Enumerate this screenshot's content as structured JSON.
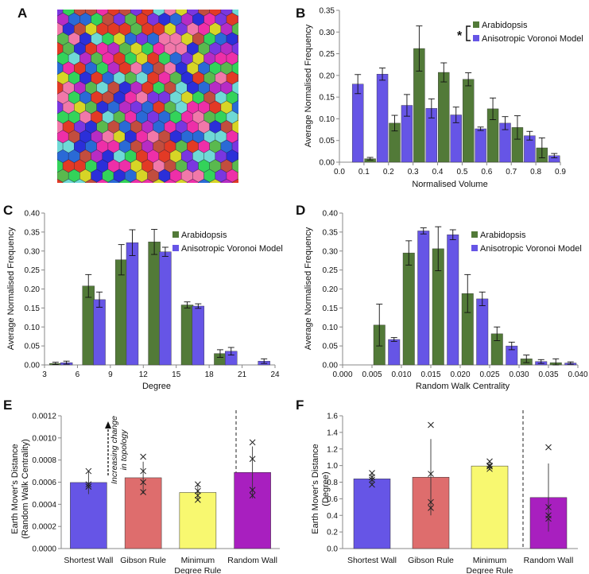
{
  "colors": {
    "green": "#527a38",
    "blue": "#6655e6",
    "red": "#de6d6d",
    "yellow": "#f8f870",
    "purple": "#a81fbf",
    "axis": "#888888",
    "text": "#111111"
  },
  "panel_a": {
    "letter": "A",
    "description": "3D tessellation of coloured polyhedral cells",
    "cell_colors": [
      "#33d35a",
      "#ee2fa8",
      "#7a36e0",
      "#d7d526",
      "#2a6ad6",
      "#e23a25",
      "#6fd9d6",
      "#2b2fd9",
      "#f178a9",
      "#b72cc4",
      "#5ab94e",
      "#c24d3e"
    ]
  },
  "chart_data": [
    {
      "id": "B",
      "letter": "B",
      "type": "bar",
      "title": "",
      "xlabel": "Normalised Volume",
      "ylabel": "Average Normalised Frequency",
      "xlim": [
        0,
        0.9
      ],
      "ylim": [
        0,
        0.35
      ],
      "xticks": [
        "0.0",
        "0.1",
        "0.2",
        "0.3",
        "0.4",
        "0.5",
        "0.6",
        "0.7",
        "0.8",
        "0.9"
      ],
      "yticks": [
        "0.00",
        "0.05",
        "0.10",
        "0.15",
        "0.20",
        "0.25",
        "0.30",
        "0.35"
      ],
      "legend": [
        "Arabidopsis",
        "Anisotropic Voronoi Model"
      ],
      "legend_position": "top-right",
      "significance": "*",
      "series": [
        {
          "name": "Arabidopsis",
          "color": "green",
          "x": [
            0.125,
            0.225,
            0.325,
            0.425,
            0.525,
            0.625,
            0.725,
            0.825
          ],
          "values": [
            0.008,
            0.09,
            0.262,
            0.207,
            0.191,
            0.123,
            0.08,
            0.033
          ],
          "errors": [
            0.003,
            0.018,
            0.052,
            0.022,
            0.015,
            0.025,
            0.027,
            0.023
          ]
        },
        {
          "name": "Anisotropic Voronoi Model",
          "color": "blue",
          "x": [
            0.075,
            0.175,
            0.275,
            0.375,
            0.475,
            0.575,
            0.675,
            0.775,
            0.875
          ],
          "values": [
            0.18,
            0.203,
            0.131,
            0.124,
            0.109,
            0.077,
            0.09,
            0.061,
            0.015
          ],
          "errors": [
            0.022,
            0.014,
            0.025,
            0.022,
            0.018,
            0.004,
            0.015,
            0.01,
            0.005
          ]
        }
      ]
    },
    {
      "id": "C",
      "letter": "C",
      "type": "bar",
      "title": "",
      "xlabel": "Degree",
      "ylabel": "Average Normalised Frequency",
      "xlim": [
        3,
        24
      ],
      "ylim": [
        0,
        0.4
      ],
      "xticks": [
        "3",
        "6",
        "9",
        "12",
        "15",
        "18",
        "21",
        "24"
      ],
      "yticks": [
        "0.00",
        "0.05",
        "0.10",
        "0.15",
        "0.20",
        "0.25",
        "0.30",
        "0.35",
        "0.40"
      ],
      "legend": [
        "Arabidopsis",
        "Anisotropic Voronoi Model"
      ],
      "legend_position": "top-right",
      "series": [
        {
          "name": "Arabidopsis",
          "color": "green",
          "x": [
            4.0,
            7.0,
            10.0,
            13.0,
            16.0,
            19.0
          ],
          "values": [
            0.004,
            0.208,
            0.277,
            0.324,
            0.158,
            0.03
          ],
          "errors": [
            0.003,
            0.03,
            0.04,
            0.033,
            0.008,
            0.01
          ]
        },
        {
          "name": "Anisotropic Voronoi Model",
          "color": "blue",
          "x": [
            5.0,
            8.0,
            11.0,
            14.0,
            17.0,
            20.0,
            23.0
          ],
          "values": [
            0.006,
            0.172,
            0.322,
            0.298,
            0.155,
            0.036,
            0.01
          ],
          "errors": [
            0.004,
            0.02,
            0.034,
            0.012,
            0.006,
            0.01,
            0.006
          ]
        }
      ]
    },
    {
      "id": "D",
      "letter": "D",
      "type": "bar",
      "title": "",
      "xlabel": "Random Walk Centrality",
      "ylabel": "Average Normalised Frequency",
      "xlim": [
        0,
        0.04
      ],
      "ylim": [
        0,
        0.4
      ],
      "xticks": [
        "0.000",
        "0.005",
        "0.010",
        "0.015",
        "0.020",
        "0.025",
        "0.030",
        "0.035",
        "0.040"
      ],
      "yticks": [
        "0.00",
        "0.05",
        "0.10",
        "0.15",
        "0.20",
        "0.25",
        "0.30",
        "0.35",
        "0.40"
      ],
      "legend": [
        "Arabidopsis",
        "Anisotropic Voronoi Model"
      ],
      "legend_position": "top-right",
      "series": [
        {
          "name": "Arabidopsis",
          "color": "green",
          "x": [
            0.00625,
            0.01125,
            0.01625,
            0.02125,
            0.02625,
            0.03125,
            0.03625
          ],
          "values": [
            0.105,
            0.295,
            0.306,
            0.188,
            0.082,
            0.016,
            0.006
          ],
          "errors": [
            0.055,
            0.032,
            0.058,
            0.05,
            0.018,
            0.01,
            0.01
          ]
        },
        {
          "name": "Anisotropic Voronoi Model",
          "color": "blue",
          "x": [
            0.00875,
            0.01375,
            0.01875,
            0.02375,
            0.02875,
            0.03375,
            0.03875
          ],
          "values": [
            0.067,
            0.353,
            0.343,
            0.174,
            0.05,
            0.009,
            0.005
          ],
          "errors": [
            0.005,
            0.008,
            0.013,
            0.018,
            0.01,
            0.005,
            0.003
          ]
        }
      ]
    },
    {
      "id": "E",
      "letter": "E",
      "type": "bar",
      "title": "",
      "xlabel": "",
      "ylabel": "Earth Mover's Distance\n(Random Walk Centrality)",
      "ylim": [
        0,
        0.0012
      ],
      "yticks": [
        "0.0000",
        "0.0002",
        "0.0004",
        "0.0006",
        "0.0008",
        "0.0010",
        "0.0012"
      ],
      "categories": [
        "Shortest Wall",
        "Gibson Rule",
        "Minimum\nDegree Rule",
        "Random Wall"
      ],
      "colors": [
        "blue",
        "red",
        "yellow",
        "purple"
      ],
      "values": [
        0.000597,
        0.00064,
        0.000507,
        0.000688
      ],
      "errors": [
        0.000105,
        0.000145,
        7.5e-05,
        0.000235
      ],
      "points": [
        [
          0.0007,
          0.00058,
          0.00056,
          0.00056
        ],
        [
          0.00083,
          0.0007,
          0.0006,
          0.00051
        ],
        [
          0.00058,
          0.00052,
          0.00048,
          0.00044
        ],
        [
          0.00096,
          0.00081,
          0.00053,
          0.00048
        ]
      ],
      "annotation": "Increasing change\nin topology"
    },
    {
      "id": "F",
      "letter": "F",
      "type": "bar",
      "title": "",
      "xlabel": "",
      "ylabel": "Earth Mover's Distance\n(Degree)",
      "ylim": [
        0,
        1.6
      ],
      "yticks": [
        "0.0",
        "0.2",
        "0.4",
        "0.6",
        "0.8",
        "1.0",
        "1.2",
        "1.4",
        "1.6"
      ],
      "categories": [
        "Shortest Wall",
        "Gibson Rule",
        "Minimum\nDegree Rule",
        "Random Wall"
      ],
      "colors": [
        "blue",
        "red",
        "yellow",
        "purple"
      ],
      "values": [
        0.84,
        0.86,
        0.995,
        0.615
      ],
      "errors": [
        0.075,
        0.46,
        0.05,
        0.41
      ],
      "points": [
        [
          0.91,
          0.86,
          0.83,
          0.77
        ],
        [
          1.49,
          0.9,
          0.56,
          0.49
        ],
        [
          1.05,
          1.0,
          0.99,
          0.96
        ],
        [
          1.22,
          0.5,
          0.4,
          0.36
        ]
      ]
    }
  ]
}
